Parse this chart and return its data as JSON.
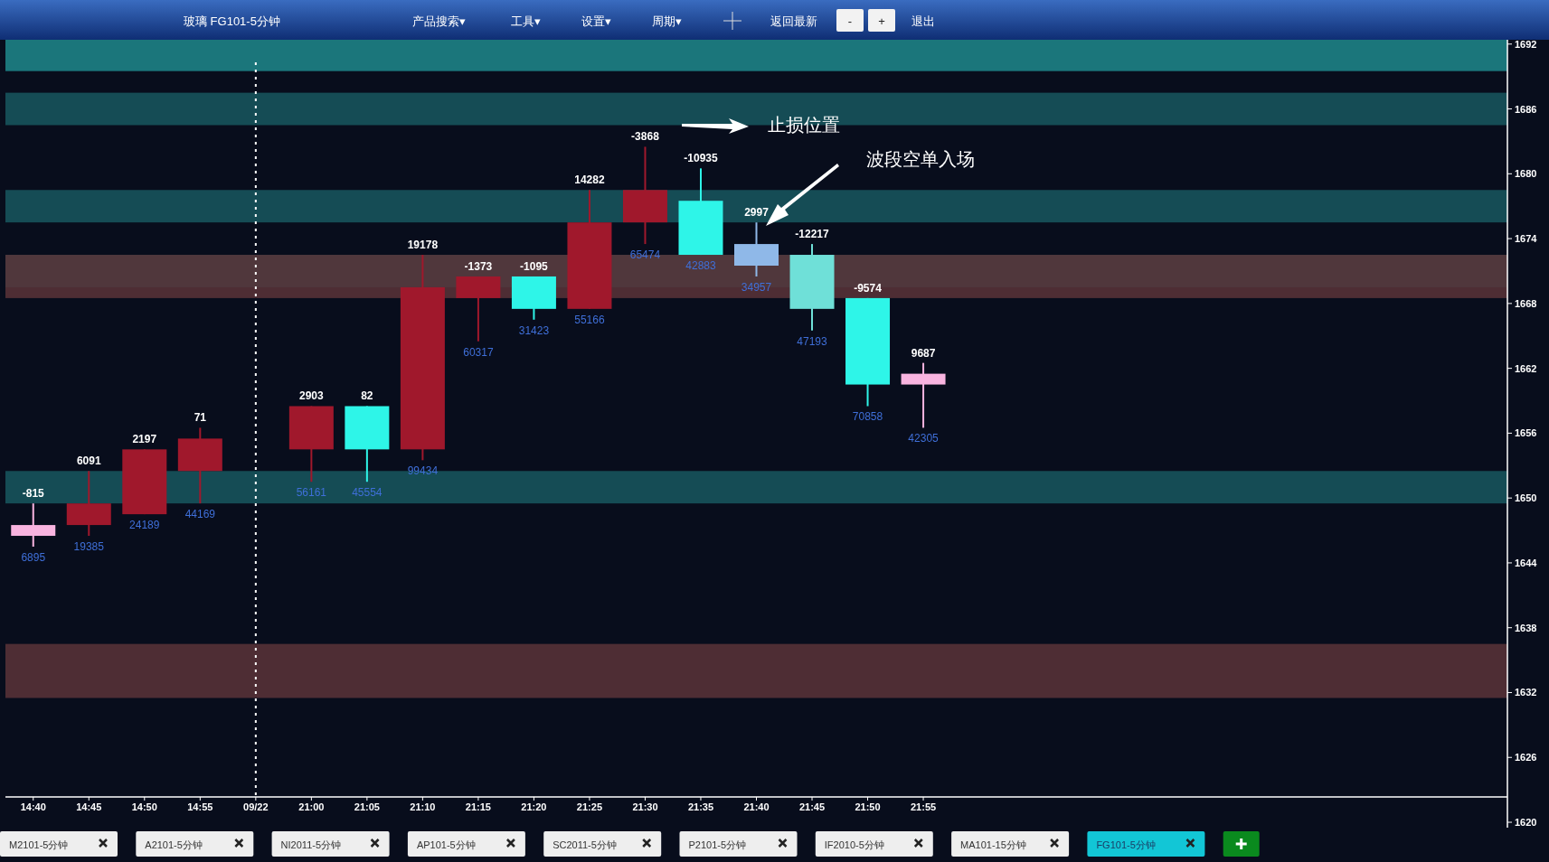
{
  "chart_data": [
    {
      "type": "other",
      "title": "玻璃 FG101-5分钟",
      "annotations": [
        "产品搜索▾",
        "工具▾",
        "设置▾",
        "周期▾",
        "返回最新",
        "-",
        "+",
        "退出"
      ]
    },
    {
      "type": "candlestick",
      "categories": [
        "14:40",
        "14:45",
        "14:50",
        "14:55",
        "09/22",
        "21:00",
        "21:05",
        "21:10",
        "21:15",
        "21:20",
        "21:25",
        "21:30",
        "21:35",
        "21:40",
        "21:45",
        "21:50",
        "21:55",
        null,
        null,
        null,
        null,
        null,
        null,
        null,
        null,
        null,
        null
      ],
      "ohlc": [
        [
          1647.5,
          1649.5,
          1645.5,
          1646.5
        ],
        [
          1647.5,
          1652.5,
          1646.5,
          1649.5
        ],
        [
          1648.5,
          1654.5,
          1648.5,
          1654.5
        ],
        [
          1652.5,
          1656.5,
          1649.5,
          1655.5
        ],
        null,
        [
          1654.5,
          1658.5,
          1651.5,
          1658.5
        ],
        [
          1658.5,
          1658.5,
          1651.5,
          1654.5
        ],
        [
          1654.5,
          1672.5,
          1653.5,
          1669.5
        ],
        [
          1668.5,
          1670.5,
          1664.5,
          1670.5
        ],
        [
          1670.5,
          1670.5,
          1666.5,
          1667.5
        ],
        [
          1667.5,
          1678.5,
          1667.5,
          1675.5
        ],
        [
          1675.5,
          1682.5,
          1673.5,
          1678.5
        ],
        [
          1677.5,
          1680.5,
          1672.5,
          1672.5
        ],
        [
          1673.5,
          1675.5,
          1670.5,
          1671.5
        ],
        [
          1672.5,
          1673.5,
          1665.5,
          1667.5
        ],
        [
          1668.5,
          1668.5,
          1658.5,
          1660.5
        ],
        [
          1661.5,
          1662.5,
          1656.5,
          1660.5
        ],
        null,
        null,
        null,
        null,
        null,
        null,
        null,
        null,
        null,
        null
      ],
      "colors": [
        "#f9b4e0",
        "#a0182c",
        "#a0182c",
        "#a0182c",
        null,
        "#a0182c",
        "#2ef5e8",
        "#a0182c",
        "#a0182c",
        "#2ef5e8",
        "#a0182c",
        "#a0182c",
        "#2ef5e8",
        "#8fb8e8",
        "#6fe0d8",
        "#2ef5e8",
        "#f9b4e0",
        null,
        null,
        null,
        null,
        null,
        null,
        null,
        null,
        null,
        null
      ],
      "ylim": [
        1619.5,
        1692.4
      ],
      "yticks": [
        1620,
        1626,
        1632,
        1638,
        1644,
        1650,
        1656,
        1662,
        1668,
        1674,
        1680,
        1686,
        1692
      ],
      "bands": [
        {
          "axis": "y",
          "from": 1689.5,
          "to": 1692.4,
          "color": "#1f8a8c"
        },
        {
          "axis": "y",
          "from": 1684.5,
          "to": 1687.5,
          "color": "#17585f"
        },
        {
          "axis": "y",
          "from": 1675.5,
          "to": 1678.5,
          "color": "#17585f"
        },
        {
          "axis": "y",
          "from": 1669.5,
          "to": 1672.5,
          "color": "#17585f"
        },
        {
          "axis": "y",
          "from": 1668.5,
          "to": 1672.5,
          "color": "#5a3438"
        },
        {
          "axis": "y",
          "from": 1649.5,
          "to": 1652.5,
          "color": "#17585f"
        },
        {
          "axis": "y",
          "from": 1631.5,
          "to": 1636.5,
          "color": "#5a3438"
        }
      ],
      "ref_lines": [
        {
          "axis": "x",
          "value": "09/22",
          "label": null,
          "color": "#ffffff",
          "line_style": "dotted"
        }
      ],
      "annotations": [
        "止损位置",
        "波段空单入场",
        "-815",
        "6895",
        "6091",
        "19385",
        "2197",
        "24189",
        "71",
        "44169",
        "2903",
        "56161",
        "82",
        "45554",
        "19178",
        "99434",
        "-1373",
        "60317",
        "-1095",
        "31423",
        "14282",
        "55166",
        "-3868",
        "65474",
        "-10935",
        "42883",
        "2997",
        "34957",
        "-12217",
        "47193",
        "-9574",
        "70858",
        "9687",
        "42305"
      ]
    },
    {
      "type": "other",
      "annotations": [
        "M2101-5分钟",
        "A2101-5分钟",
        "NI2011-5分钟",
        "AP101-5分钟",
        "SC2011-5分钟",
        "P2101-5分钟",
        "IF2010-5分钟",
        "MA101-15分钟",
        "FG101-5分钟"
      ]
    }
  ]
}
